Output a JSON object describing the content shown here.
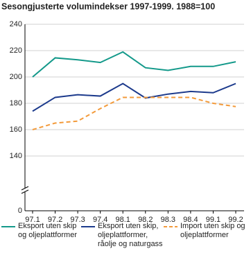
{
  "chart_data": {
    "type": "line",
    "title": "Sesongjusterte volumindekser 1997-1999. 1988=100",
    "categories": [
      "97.1",
      "97.2",
      "97.3",
      "97.4",
      "98.1",
      "98.2",
      "98.3",
      "98.4",
      "99.1",
      "99.2"
    ],
    "series": [
      {
        "name": "Eksport uten skip og oljeplattformer",
        "color": "#13998a",
        "dashed": false,
        "values": [
          200,
          214.5,
          213,
          211,
          219,
          207,
          205,
          208,
          208,
          211.5
        ]
      },
      {
        "name": "Eksport uten skip, oljeplattformer, råolje og naturgass",
        "color": "#1c3a8c",
        "dashed": false,
        "values": [
          174,
          184.5,
          186.5,
          185.5,
          195,
          184,
          187,
          189,
          188,
          195
        ]
      },
      {
        "name": "Import uten skip og oljeplattformer",
        "color": "#f39a3a",
        "dashed": true,
        "values": [
          160,
          165,
          166.5,
          176,
          184.5,
          184.5,
          184.5,
          184.5,
          180,
          177.5
        ]
      }
    ],
    "ylim": [
      0,
      240
    ],
    "yticks": [
      0,
      140,
      160,
      180,
      200,
      220,
      240
    ],
    "axis_break": true,
    "grid": true
  }
}
